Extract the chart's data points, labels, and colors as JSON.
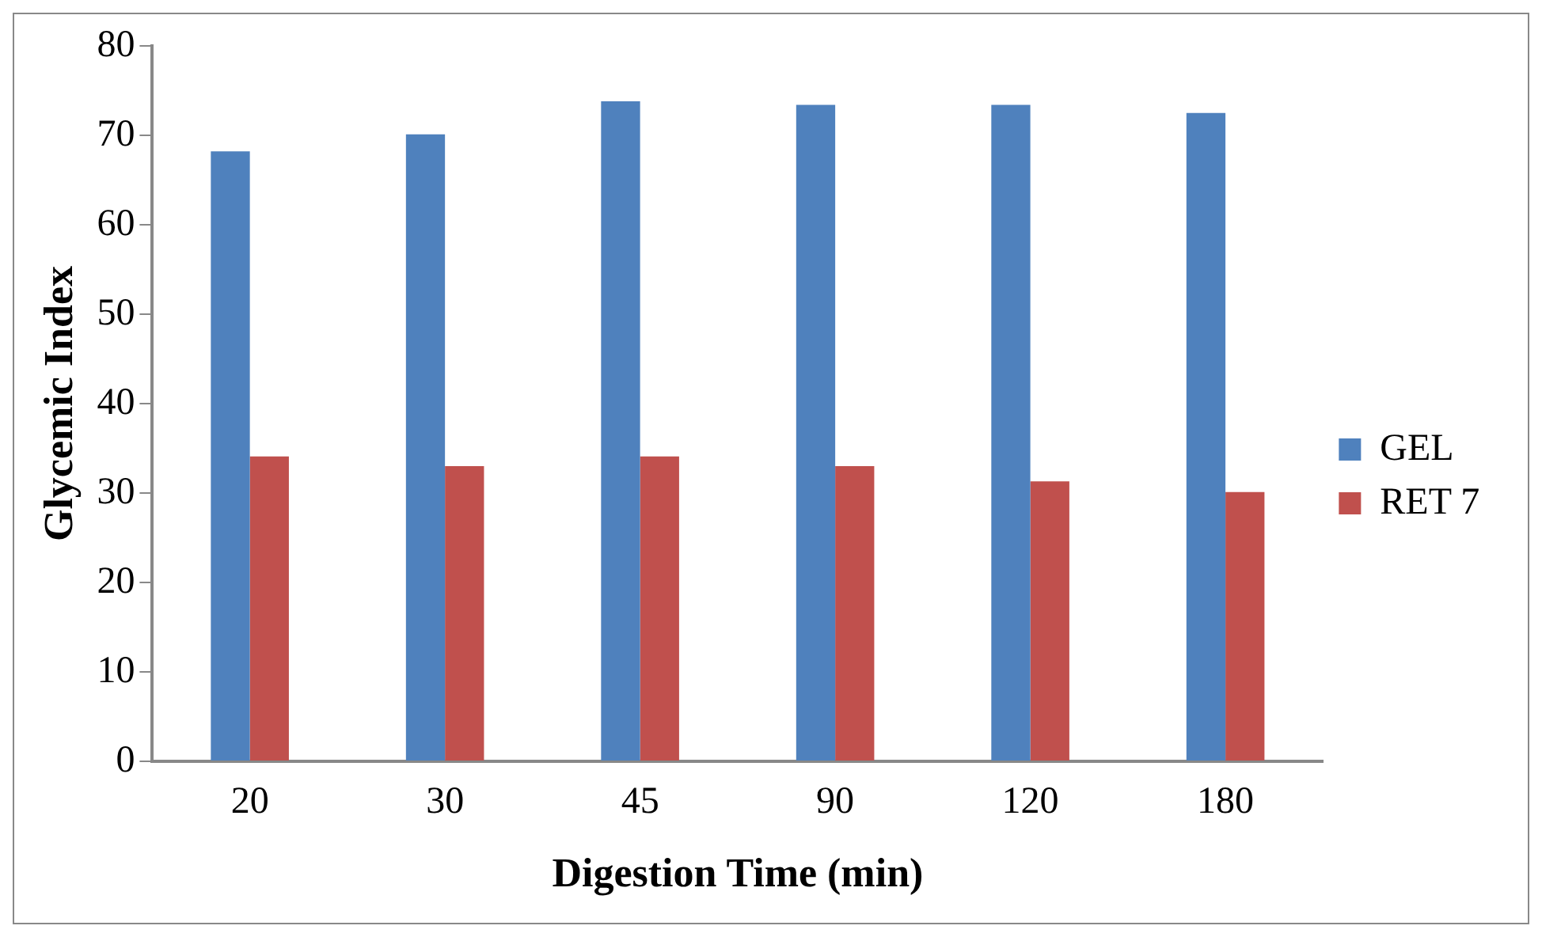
{
  "chart_data": {
    "type": "bar",
    "xlabel": "Digestion Time (min)",
    "ylabel": "Glycemic Index",
    "categories": [
      "20",
      "30",
      "45",
      "90",
      "120",
      "180"
    ],
    "series": [
      {
        "name": "GEL",
        "color": "#4f81bd",
        "values": [
          68.2,
          70.1,
          73.8,
          73.4,
          73.4,
          72.5
        ]
      },
      {
        "name": "RET 7",
        "color": "#c0504d",
        "values": [
          34.1,
          33.0,
          34.1,
          33.0,
          31.3,
          30.1
        ]
      }
    ],
    "ylim": [
      0,
      80
    ],
    "yticks": [
      0,
      10,
      20,
      30,
      40,
      50,
      60,
      70,
      80
    ],
    "grid": false,
    "legend": "right"
  }
}
